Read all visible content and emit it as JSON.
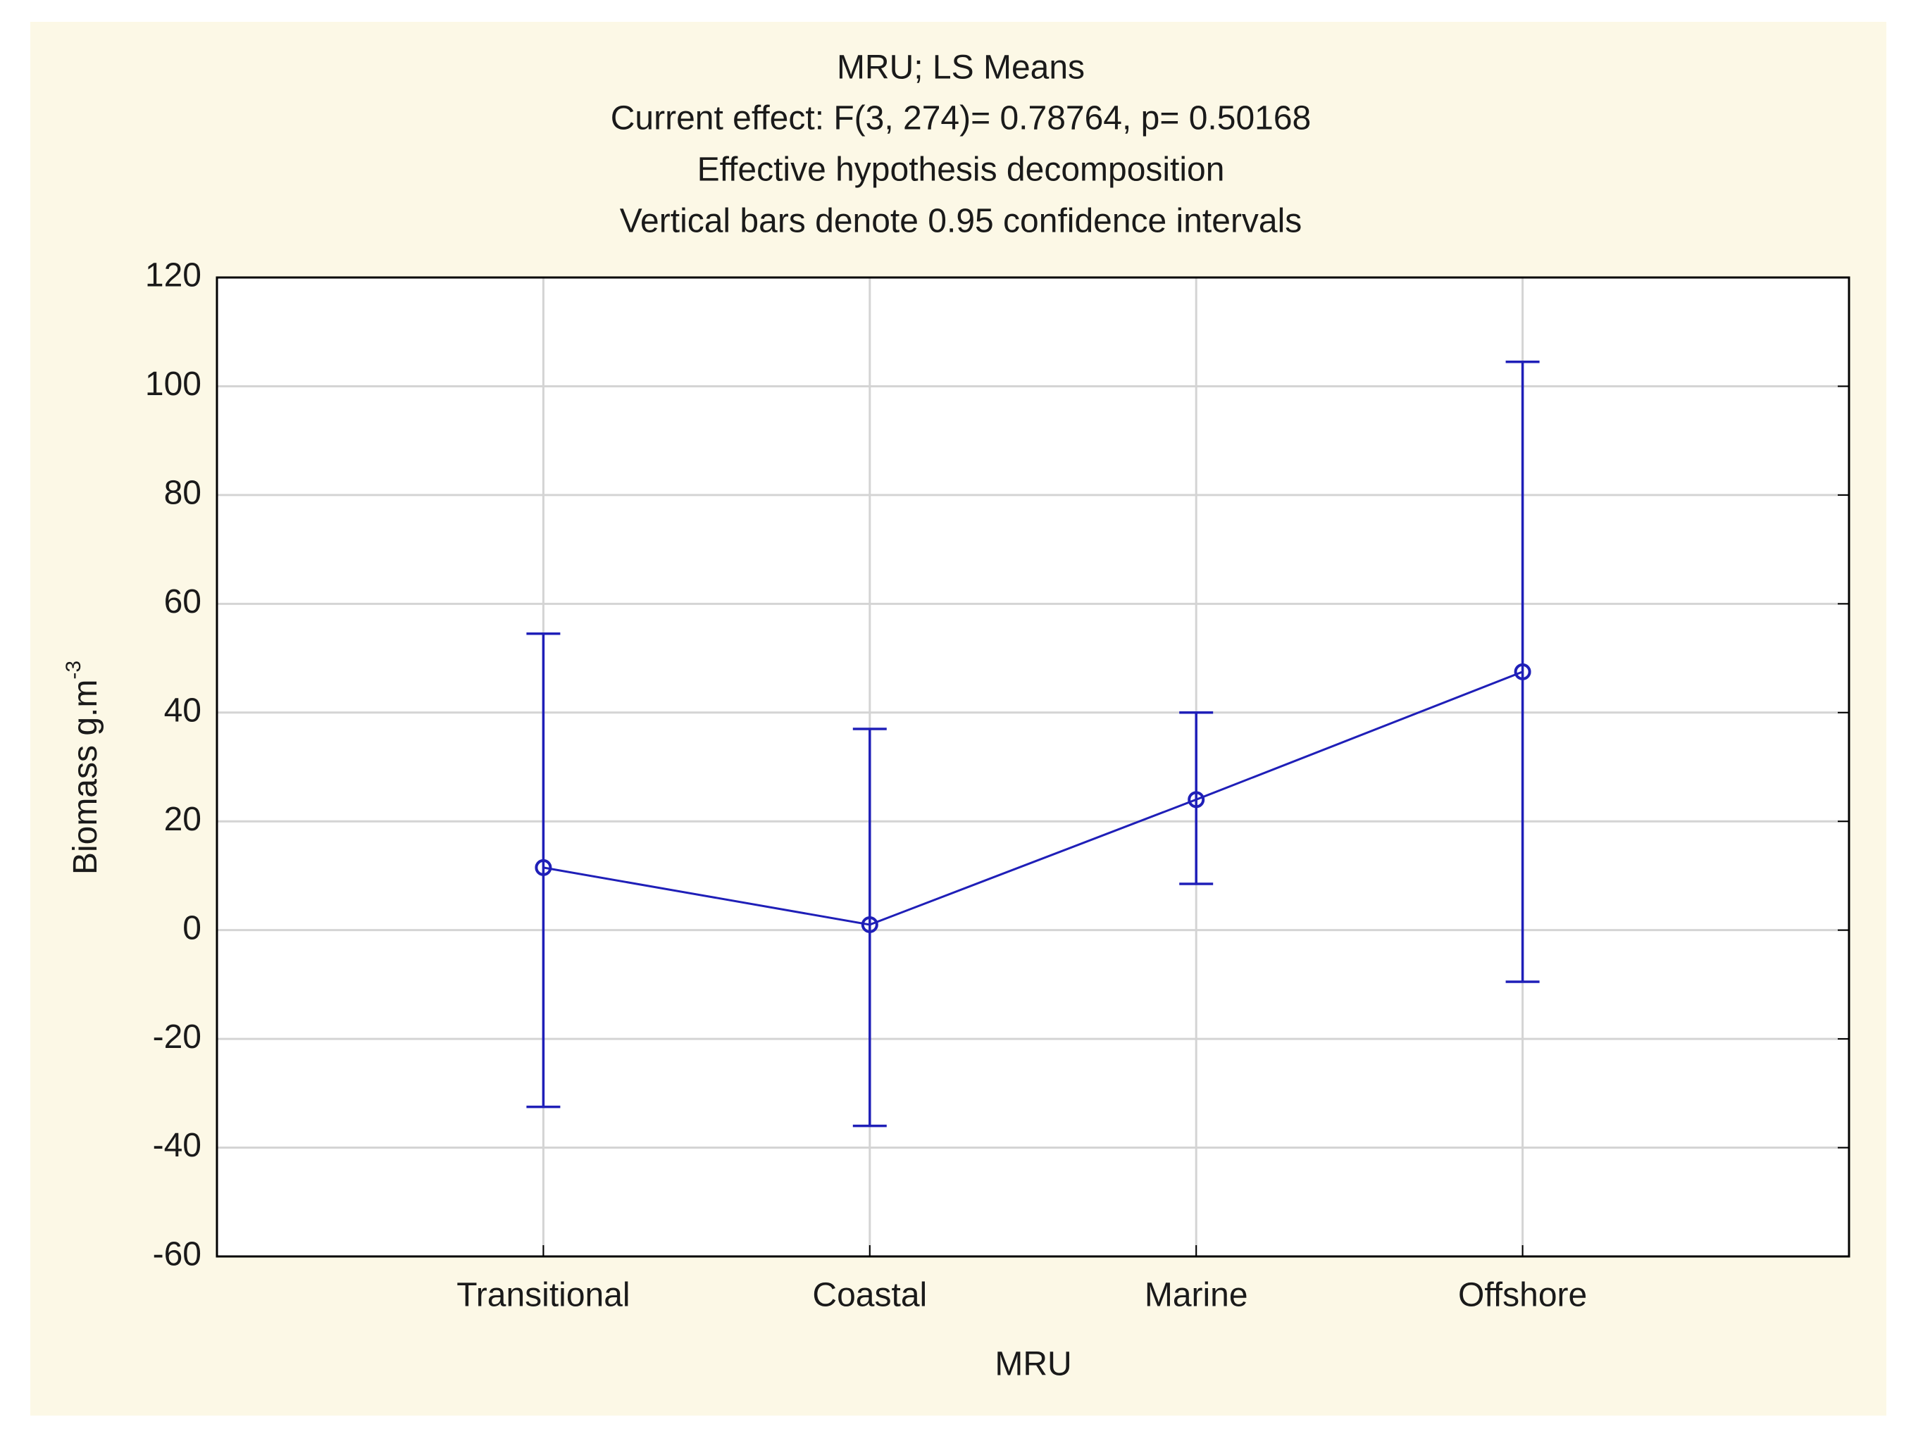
{
  "chart_data": {
    "type": "line",
    "title": "MRU; LS Means",
    "subtitle": [
      "Current effect: F(3, 274)= 0.78764, p= 0.50168",
      "Effective hypothesis decomposition",
      "Vertical bars denote 0.95 confidence intervals"
    ],
    "xlabel": "MRU",
    "ylabel": "Biomass g.m",
    "ylabel_superscript": "-3",
    "categories": [
      "Transitional",
      "Coastal",
      "Marine",
      "Offshore"
    ],
    "series": [
      {
        "name": "LS Means",
        "color": "#1f1fb8",
        "values": [
          11.5,
          1,
          24,
          47.5
        ],
        "ci_low": [
          -32.5,
          -36,
          8.5,
          -9.5
        ],
        "ci_high": [
          54.5,
          37,
          40,
          104.5
        ]
      }
    ],
    "ylim": [
      -60,
      120
    ],
    "yticks": [
      -60,
      -40,
      -20,
      0,
      20,
      40,
      60,
      80,
      100,
      120
    ],
    "grid": true
  }
}
